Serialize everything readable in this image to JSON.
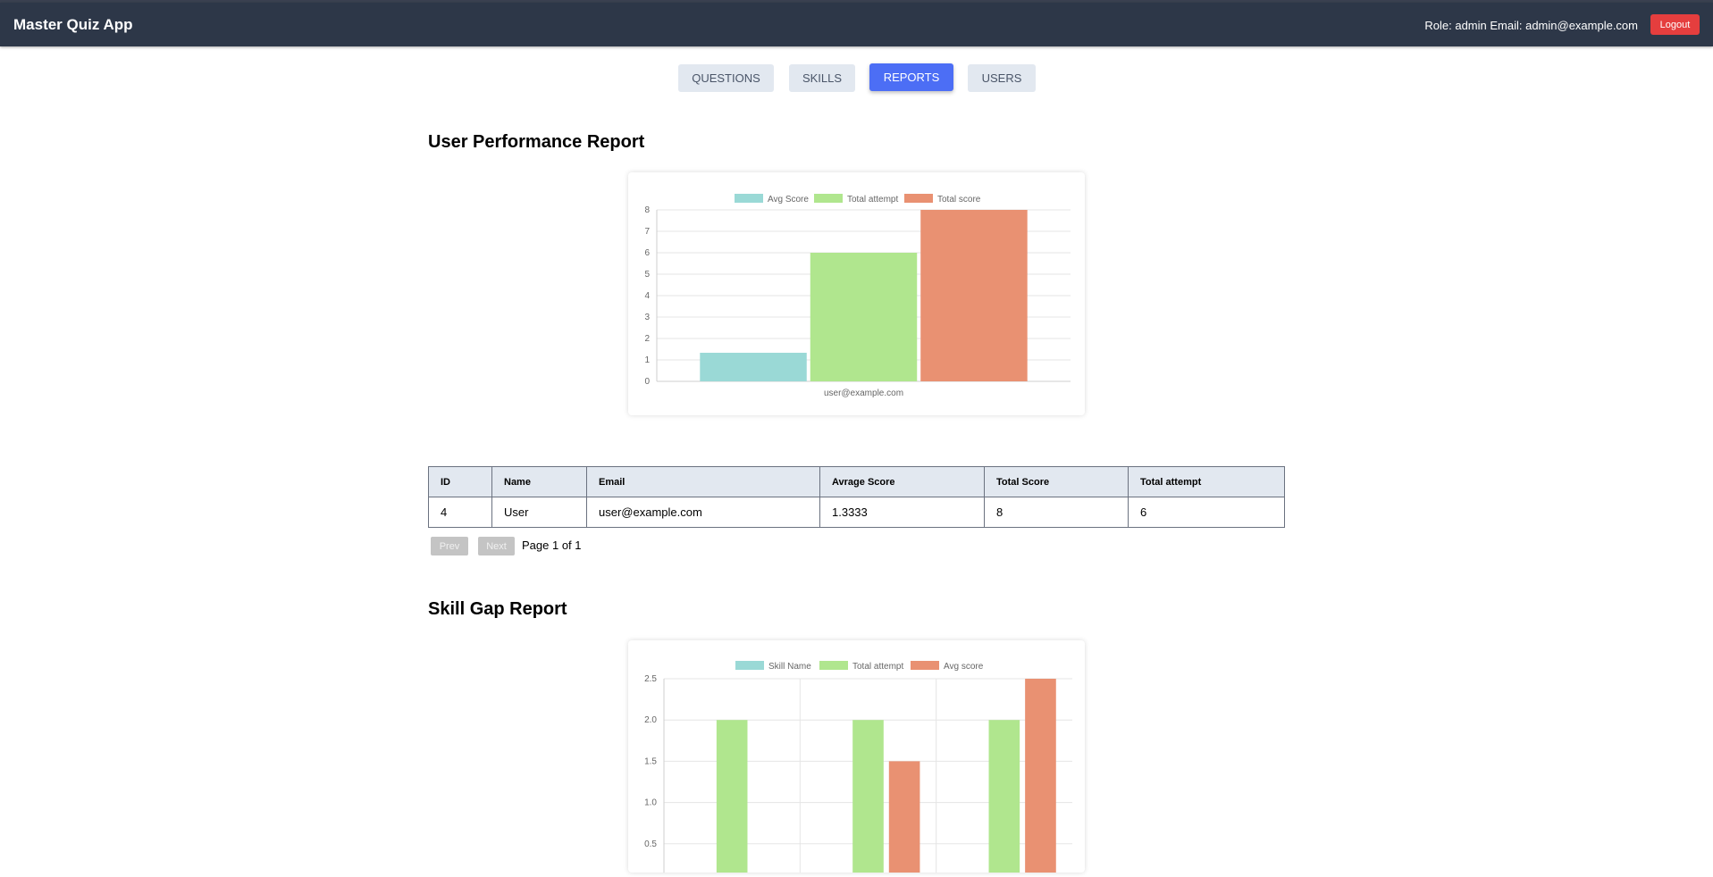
{
  "header": {
    "app_title": "Master Quiz App",
    "user_info": "Role: admin Email: admin@example.com",
    "logout_label": "Logout"
  },
  "nav": {
    "tabs": [
      {
        "label": "QUESTIONS",
        "active": false
      },
      {
        "label": "SKILLS",
        "active": false
      },
      {
        "label": "REPORTS",
        "active": true
      },
      {
        "label": "USERS",
        "active": false
      }
    ]
  },
  "user_report": {
    "title": "User Performance Report",
    "table": {
      "columns": [
        "ID",
        "Name",
        "Email",
        "Avrage Score",
        "Total Score",
        "Total attempt"
      ],
      "rows": [
        [
          "4",
          "User",
          "user@example.com",
          "1.3333",
          "8",
          "6"
        ]
      ]
    },
    "pagination": {
      "prev_label": "Prev",
      "next_label": "Next",
      "page_info": "Page 1 of 1"
    }
  },
  "skill_report": {
    "title": "Skill Gap Report"
  },
  "colors": {
    "teal": "#9ad9d6",
    "green": "#b0e68e",
    "orange": "#e99172",
    "navbar": "#2d3748",
    "accent": "#4c6ef5",
    "danger": "#e53e3e"
  },
  "chart_data": [
    {
      "type": "bar",
      "categories": [
        "user@example.com"
      ],
      "series": [
        {
          "name": "Avg Score",
          "values": [
            1.3333
          ],
          "color": "#9ad9d6"
        },
        {
          "name": "Total attempt",
          "values": [
            6
          ],
          "color": "#b0e68e"
        },
        {
          "name": "Total score",
          "values": [
            8
          ],
          "color": "#e99172"
        }
      ],
      "ylim": [
        0,
        8
      ],
      "yticks": [
        "0",
        "1",
        "2",
        "3",
        "4",
        "5",
        "6",
        "7",
        "8"
      ],
      "legend": "top"
    },
    {
      "type": "bar",
      "categories": [
        "",
        "",
        ""
      ],
      "series": [
        {
          "name": "Skill Name",
          "values": [
            0,
            0,
            0
          ],
          "color": "#9ad9d6"
        },
        {
          "name": "Total attempt",
          "values": [
            2,
            2,
            2
          ],
          "color": "#b0e68e"
        },
        {
          "name": "Avg score",
          "values": [
            0,
            1.5,
            2.5
          ],
          "color": "#e99172"
        }
      ],
      "ylim": [
        0,
        2.5
      ],
      "yticks": [
        "0.5",
        "1.0",
        "1.5",
        "2.0",
        "2.5"
      ],
      "legend": "top"
    }
  ]
}
